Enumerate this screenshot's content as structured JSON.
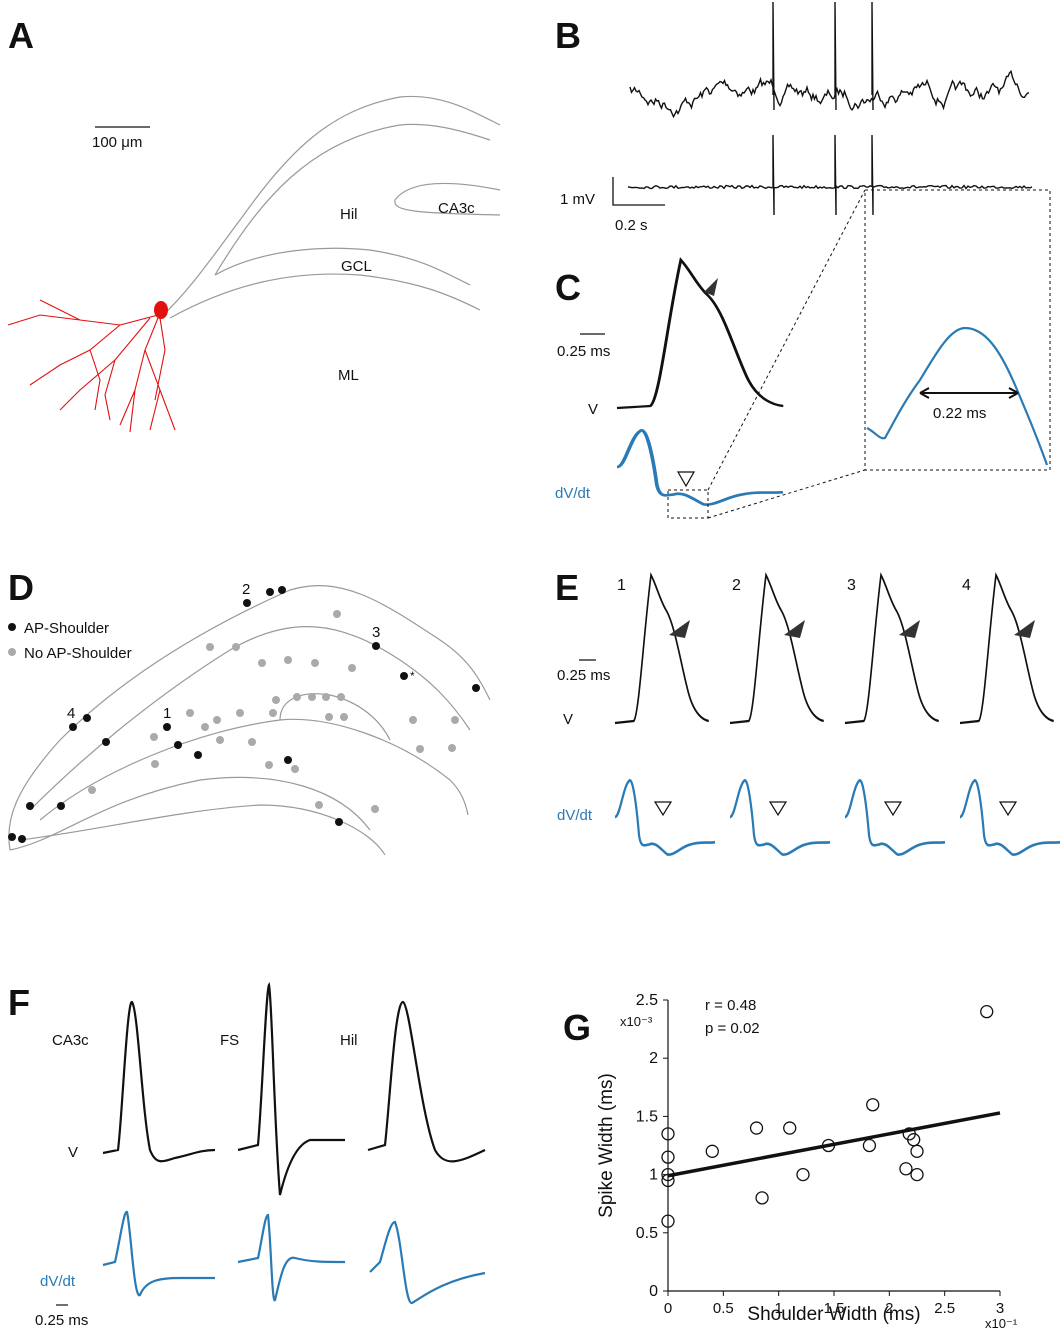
{
  "panels": {
    "A": {
      "label": "A",
      "scale_bar": "100 μm",
      "regions": [
        "Hil",
        "CA3c",
        "GCL",
        "ML"
      ]
    },
    "B": {
      "label": "B",
      "scale_y": "1 mV",
      "scale_x": "0.2 s"
    },
    "C": {
      "label": "C",
      "scale_bar": "0.25 ms",
      "voltage": "V",
      "derivative": "dV/dt",
      "width": "0.22 ms"
    },
    "D": {
      "label": "D",
      "legend": [
        "AP-Shoulder",
        "No AP-Shoulder"
      ],
      "cells": [
        "1",
        "2",
        "3",
        "4"
      ],
      "marker": "*"
    },
    "E": {
      "label": "E",
      "cells": [
        "1",
        "2",
        "3",
        "4"
      ],
      "scale_bar": "0.25 ms",
      "voltage": "V",
      "derivative": "dV/dt"
    },
    "F": {
      "label": "F",
      "cell_types": [
        "CA3c",
        "FS",
        "Hil"
      ],
      "voltage": "V",
      "derivative": "dV/dt",
      "scale_bar": "0.25 ms"
    }
  },
  "chart_data": {
    "type": "scatter",
    "panel_label": "G",
    "x_label": "Shoulder Width (ms)",
    "y_label": "Spike Width (ms)",
    "x_multiplier": "x10⁻¹",
    "y_multiplier": "x10⁻³",
    "annotations": [
      "r = 0.48",
      "p = 0.02"
    ],
    "x": [
      0,
      0,
      0,
      0,
      0,
      0.4,
      0.8,
      0.85,
      1.1,
      1.22,
      1.45,
      1.82,
      1.85,
      2.15,
      2.18,
      2.22,
      2.25,
      2.25,
      2.88
    ],
    "values": [
      1.35,
      1.15,
      1.0,
      0.95,
      0.6,
      1.2,
      1.4,
      0.8,
      1.4,
      1.0,
      1.25,
      1.25,
      1.6,
      1.05,
      1.35,
      1.3,
      1.0,
      1.2,
      2.4
    ],
    "fit": {
      "x": [
        0,
        3
      ],
      "y": [
        0.99,
        1.53
      ]
    },
    "xlim": [
      0,
      3
    ],
    "xticks": [
      0,
      0.5,
      1,
      1.5,
      2,
      2.5,
      3
    ],
    "ylim": [
      0,
      2.5
    ],
    "yticks": [
      0,
      0.5,
      1,
      1.5,
      2,
      2.5
    ]
  }
}
